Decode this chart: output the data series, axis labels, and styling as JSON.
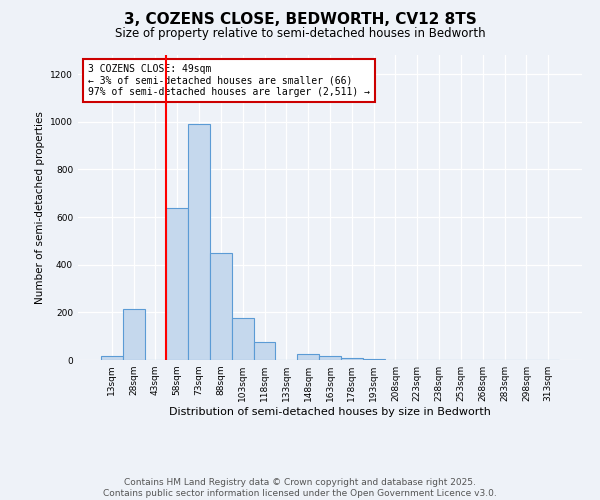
{
  "title": "3, COZENS CLOSE, BEDWORTH, CV12 8TS",
  "subtitle": "Size of property relative to semi-detached houses in Bedworth",
  "xlabel": "Distribution of semi-detached houses by size in Bedworth",
  "ylabel": "Number of semi-detached properties",
  "footer_line1": "Contains HM Land Registry data © Crown copyright and database right 2025.",
  "footer_line2": "Contains public sector information licensed under the Open Government Licence v3.0.",
  "annotation_title": "3 COZENS CLOSE: 49sqm",
  "annotation_line2": "← 3% of semi-detached houses are smaller (66)",
  "annotation_line3": "97% of semi-detached houses are larger (2,511) →",
  "bar_labels": [
    "13sqm",
    "28sqm",
    "43sqm",
    "58sqm",
    "73sqm",
    "88sqm",
    "103sqm",
    "118sqm",
    "133sqm",
    "148sqm",
    "163sqm",
    "178sqm",
    "193sqm",
    "208sqm",
    "223sqm",
    "238sqm",
    "253sqm",
    "268sqm",
    "283sqm",
    "298sqm",
    "313sqm"
  ],
  "bar_values": [
    18,
    215,
    0,
    640,
    990,
    450,
    175,
    75,
    0,
    25,
    15,
    8,
    3,
    0,
    0,
    0,
    0,
    0,
    0,
    0,
    0
  ],
  "bar_color": "#c5d8ed",
  "bar_edge_color": "#5b9bd5",
  "red_line_x": 2.5,
  "ylim": [
    0,
    1280
  ],
  "yticks": [
    0,
    200,
    400,
    600,
    800,
    1000,
    1200
  ],
  "annotation_box_color": "#ffffff",
  "annotation_box_edge": "#cc0000",
  "background_color": "#eef2f8",
  "title_fontsize": 11,
  "subtitle_fontsize": 8.5,
  "footer_fontsize": 6.5,
  "footer_color": "#555555"
}
